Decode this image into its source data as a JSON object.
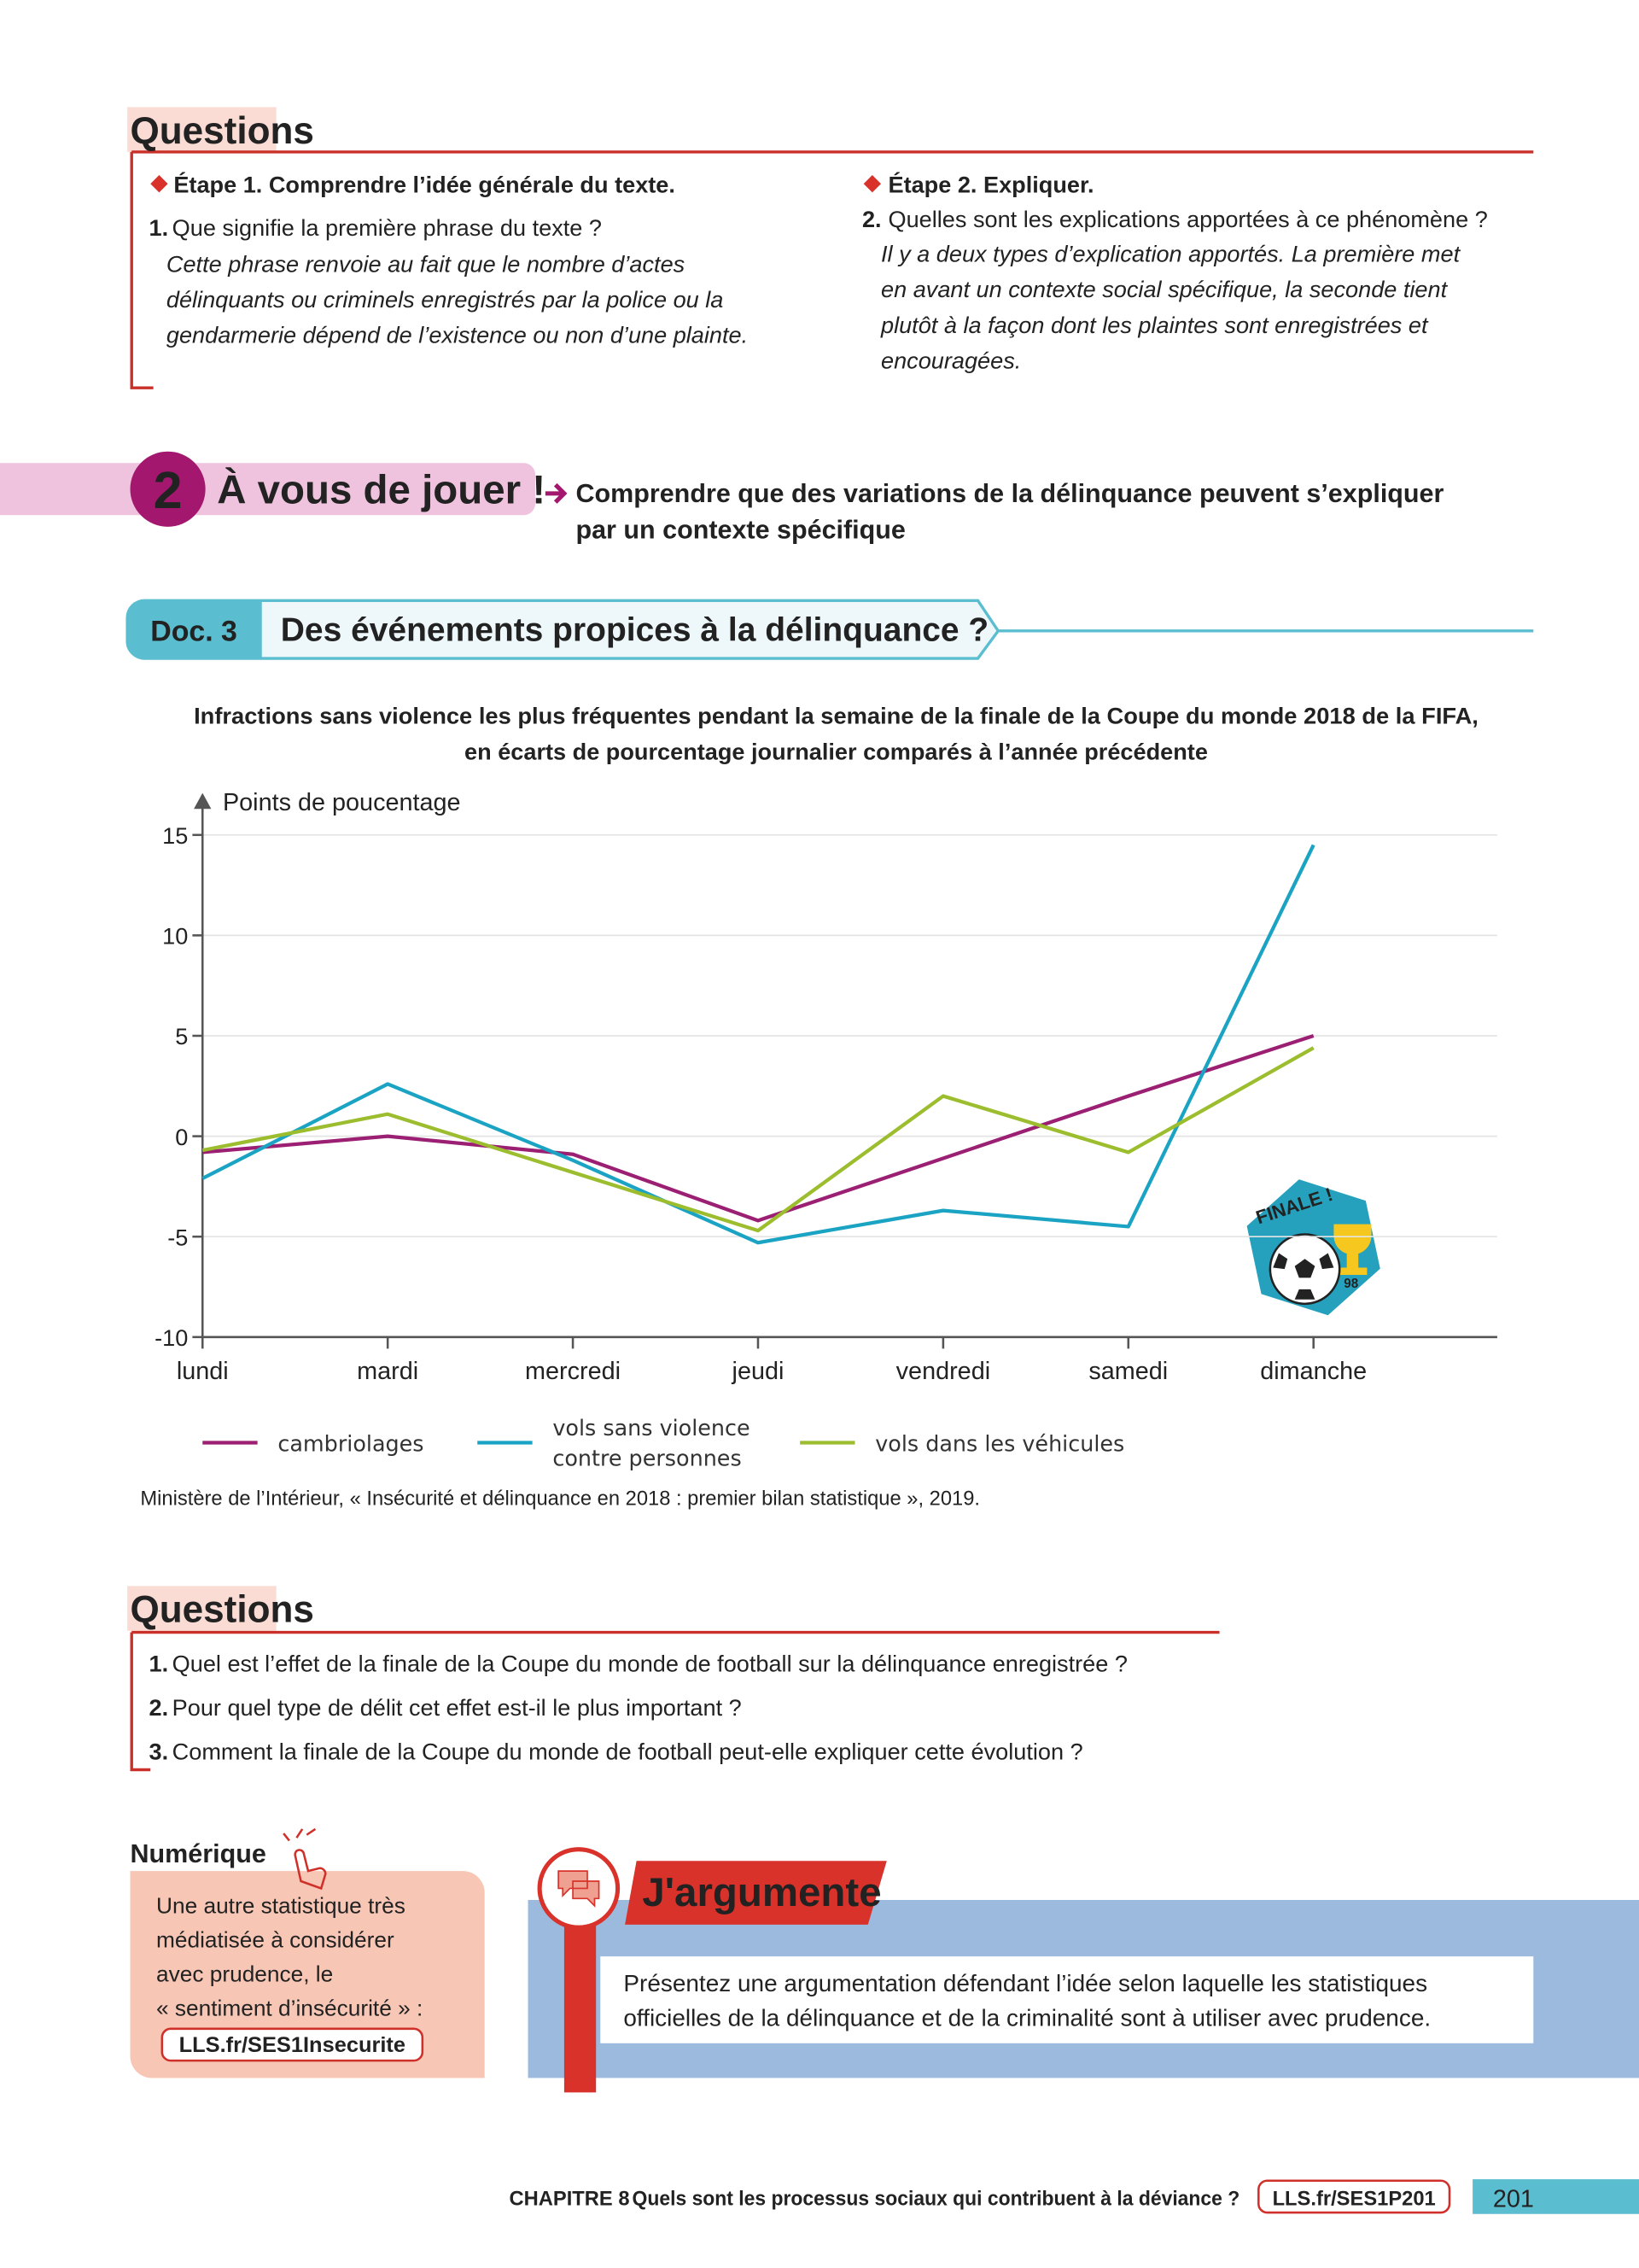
{
  "questions1": {
    "title": "Questions",
    "etape1": {
      "heading": "Étape 1. Comprendre l’idée générale du texte.",
      "number": "1.",
      "question": "Que signifie la première phrase du texte ?",
      "answer": [
        "Cette phrase renvoie au fait que le nombre d’actes",
        "délinquants ou criminels enregistrés par la police ou la",
        "gendarmerie dépend de l’existence ou non d’une plainte."
      ]
    },
    "etape2": {
      "heading": "Étape 2. Expliquer.",
      "number": "2.",
      "question": "Quelles sont les explications apportées à ce phénomène ?",
      "answer": [
        "Il y a deux types d’explication apportés. La première met",
        "en avant un contexte social spécifique, la seconde tient",
        "plutôt à la façon dont les plaintes sont enregistrées et",
        "encouragées."
      ]
    }
  },
  "section2": {
    "number": "2",
    "title": "À vous de jouer !",
    "goal": [
      "Comprendre que des variations de la délinquance peuvent s’expliquer",
      "par un contexte spécifique"
    ]
  },
  "doc3": {
    "label": "Doc. 3",
    "title": "Des événements propices à la délinquance ?"
  },
  "chart_data": {
    "type": "line",
    "title": "Infractions sans violence les plus fréquentes pendant la semaine de la finale de la Coupe du monde 2018 de la FIFA,",
    "subtitle": "en écarts de pourcentage journalier comparés à l’année précédente",
    "y_label": "Points de poucentage",
    "categories": [
      "lundi",
      "mardi",
      "mercredi",
      "jeudi",
      "vendredi",
      "samedi",
      "dimanche"
    ],
    "series": [
      {
        "name": "cambriolages",
        "color": "#9b1f72",
        "values": [
          -0.8,
          0,
          -0.9,
          -4.2,
          -1.1,
          2,
          5
        ]
      },
      {
        "name": "vols sans violence contre personnes",
        "color": "#1ba3c3",
        "values": [
          -2.1,
          2.6,
          -1.2,
          -5.3,
          -3.7,
          -4.5,
          14.5
        ]
      },
      {
        "name": "vols dans les véhicules",
        "color": "#9cbd2e",
        "values": [
          -0.7,
          1.1,
          -1.8,
          -4.7,
          2,
          -0.8,
          4.4
        ]
      }
    ],
    "ylim": [
      -10,
      15
    ],
    "yticks": [
      -10,
      -5,
      0,
      5,
      10,
      15
    ],
    "grid": true,
    "badge": {
      "text": "FINALE !",
      "year": "98"
    },
    "source": "Ministère de l’Intérieur, « Insécurité et délinquance en 2018 : premier bilan statistique », 2019."
  },
  "questions2": {
    "title": "Questions",
    "items": [
      {
        "number": "1.",
        "text": "Quel est l’effet de la finale de la Coupe du monde de football sur la délinquance enregistrée ?"
      },
      {
        "number": "2.",
        "text": "Pour quel type de délit cet effet est-il le plus important ?"
      },
      {
        "number": "3.",
        "text": "Comment la finale de la Coupe du monde de football peut-elle expliquer cette évolution ?"
      }
    ]
  },
  "numerique": {
    "title": "Numérique",
    "text": [
      "Une autre statistique très",
      "médiatisée à considérer",
      "avec prudence, le",
      "« sentiment d’insécurité » :"
    ],
    "link": "LLS.fr/SES1Insecurite"
  },
  "argumente": {
    "title": "J'argumente",
    "text": [
      "Présentez une argumentation défendant l’idée selon laquelle les statistiques",
      "officielles de la délinquance et de la criminalité sont à utiliser avec prudence."
    ]
  },
  "footer": {
    "chapter": "CHAPITRE 8",
    "title": "Quels sont les processus sociaux qui contribuent à la déviance ?",
    "link": "LLS.fr/SES1P201",
    "page": "201"
  }
}
